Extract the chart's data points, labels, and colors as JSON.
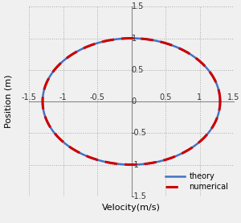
{
  "title": "",
  "xlabel": "Velocity(m/s)",
  "ylabel": "Position (m)",
  "xlim": [
    -1.5,
    1.5
  ],
  "ylim": [
    -1.5,
    1.5
  ],
  "xticks": [
    -1.5,
    -1.0,
    -0.5,
    0.0,
    0.5,
    1.0,
    1.5
  ],
  "yticks": [
    -1.5,
    -1.0,
    -0.5,
    0.0,
    0.5,
    1.0,
    1.5
  ],
  "xtick_labels": [
    "-1.5",
    "-1",
    "-0.5",
    "0",
    "0.5",
    "1",
    "1.5"
  ],
  "ytick_labels": [
    "-1.5",
    "-1",
    "-0.5",
    "0",
    "0.5",
    "1",
    "1.5"
  ],
  "ellipse_a": 1.3,
  "ellipse_b": 1.0,
  "theory_color": "#4472C4",
  "theory_lw": 1.8,
  "numerical_color": "#CC0000",
  "numerical_lw": 2.2,
  "numerical_dash": [
    5,
    3
  ],
  "legend_labels": [
    "theory",
    "numerical"
  ],
  "background_color": "#f0f0f0",
  "grid_color": "#aaaaaa",
  "grid_linestyle": ":",
  "grid_lw": 0.7,
  "spine_color": "#888888",
  "spine_lw": 0.8,
  "tick_fontsize": 7,
  "label_fontsize": 8
}
